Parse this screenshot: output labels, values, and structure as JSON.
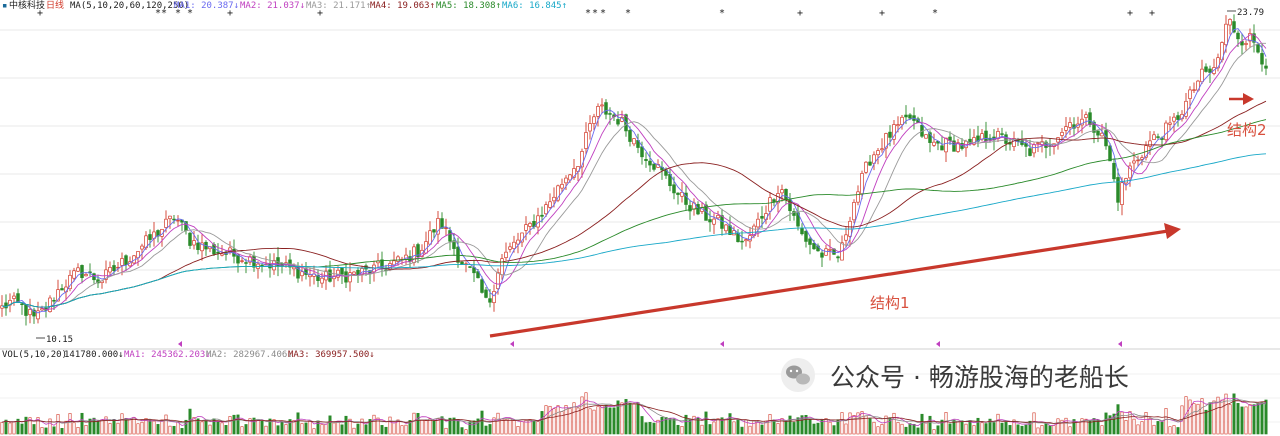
{
  "header": {
    "stock_name": "中核科技",
    "period": "日线",
    "ma_label": "MA(5,10,20,60,120,250)",
    "ma_values": [
      {
        "label": "MA1: 20.387↓",
        "color": "#6a6af0"
      },
      {
        "label": "MA2: 21.037↓",
        "color": "#c040c0"
      },
      {
        "label": "MA3: 21.171↑",
        "color": "#9a9a9a"
      },
      {
        "label": "MA4: 19.063↑",
        "color": "#8a2020"
      },
      {
        "label": "MA5: 18.308↑",
        "color": "#2a8a2a"
      },
      {
        "label": "MA6: 16.845↑",
        "color": "#18a8c8"
      }
    ]
  },
  "volume_header": {
    "label": "VOL(5,10,20)",
    "value": "141780.000↓",
    "ma_values": [
      {
        "label": "MA1: 245362.203↓",
        "color": "#c040c0"
      },
      {
        "label": "MA2: 282967.406↓",
        "color": "#8a8a8a"
      },
      {
        "label": "MA3: 369957.500↓",
        "color": "#8a2020"
      }
    ]
  },
  "markers": {
    "plus": "+",
    "star": "*"
  },
  "annotations": {
    "structure1": "结构1",
    "structure2": "结构2",
    "low_price": "10.15",
    "high_price": "23.79"
  },
  "watermark": {
    "icon": "wechat-icon",
    "text": "公众号 · 畅游股海的老船长"
  },
  "colors": {
    "up": "#d23a2a",
    "down": "#2a8a2a",
    "arrow": "#c8382c",
    "ma1": "#6a6af0",
    "ma2": "#c040c0",
    "ma3": "#9a9a9a",
    "ma4": "#8a2020",
    "ma5": "#2a8a2a",
    "ma6": "#18a8c8"
  },
  "chart_data": {
    "type": "candlestick",
    "price_range": [
      10.15,
      23.79
    ],
    "anchors": [
      [
        0,
        11.3
      ],
      [
        10,
        11.6
      ],
      [
        20,
        11.5
      ],
      [
        34,
        10.9
      ],
      [
        45,
        11.3
      ],
      [
        60,
        12.2
      ],
      [
        80,
        12.9
      ],
      [
        100,
        12.5
      ],
      [
        130,
        13.5
      ],
      [
        160,
        14.6
      ],
      [
        175,
        15.2
      ],
      [
        190,
        14.2
      ],
      [
        210,
        13.8
      ],
      [
        250,
        13.4
      ],
      [
        290,
        13.0
      ],
      [
        320,
        12.6
      ],
      [
        360,
        12.8
      ],
      [
        400,
        13.3
      ],
      [
        420,
        13.8
      ],
      [
        440,
        15.0
      ],
      [
        460,
        13.4
      ],
      [
        475,
        12.6
      ],
      [
        488,
        11.4
      ],
      [
        500,
        13.3
      ],
      [
        520,
        14.3
      ],
      [
        545,
        15.5
      ],
      [
        565,
        16.8
      ],
      [
        580,
        17.6
      ],
      [
        592,
        19.2
      ],
      [
        600,
        19.7
      ],
      [
        620,
        19.2
      ],
      [
        640,
        18.0
      ],
      [
        660,
        17.1
      ],
      [
        680,
        16.0
      ],
      [
        700,
        15.3
      ],
      [
        720,
        14.9
      ],
      [
        745,
        14.0
      ],
      [
        760,
        15.1
      ],
      [
        780,
        16.5
      ],
      [
        800,
        14.5
      ],
      [
        820,
        13.6
      ],
      [
        840,
        13.5
      ],
      [
        852,
        15.6
      ],
      [
        870,
        17.6
      ],
      [
        890,
        18.6
      ],
      [
        910,
        19.3
      ],
      [
        930,
        18.2
      ],
      [
        950,
        18.2
      ],
      [
        970,
        18.1
      ],
      [
        990,
        18.6
      ],
      [
        1010,
        18.3
      ],
      [
        1030,
        17.9
      ],
      [
        1050,
        18.3
      ],
      [
        1070,
        19.1
      ],
      [
        1090,
        19.2
      ],
      [
        1105,
        18.3
      ],
      [
        1118,
        16.0
      ],
      [
        1130,
        17.2
      ],
      [
        1150,
        18.3
      ],
      [
        1170,
        18.9
      ],
      [
        1185,
        19.8
      ],
      [
        1200,
        21.0
      ],
      [
        1215,
        21.3
      ],
      [
        1228,
        23.4
      ],
      [
        1240,
        22.6
      ],
      [
        1252,
        22.6
      ],
      [
        1265,
        21.6
      ]
    ],
    "ma_lag": {
      "ma1": 5,
      "ma2": 10,
      "ma3": 20,
      "ma4": 60,
      "ma5": 120,
      "ma6": 250
    },
    "extremes": {
      "low": 10.15,
      "high": 23.79
    }
  }
}
